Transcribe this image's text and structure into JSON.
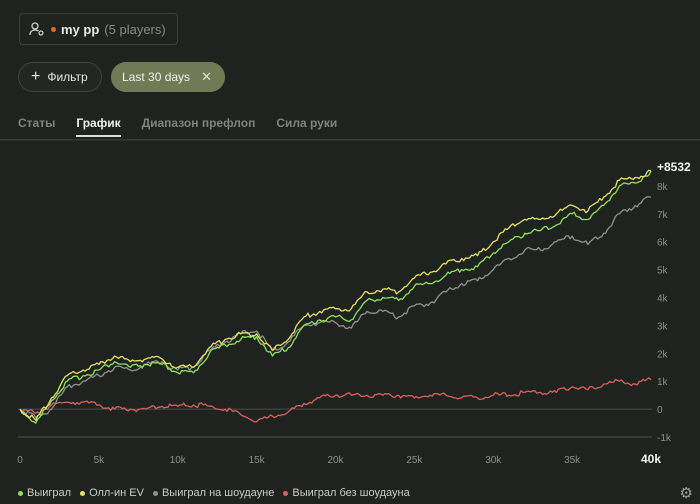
{
  "player": {
    "name": "my pp",
    "count": "(5 players)"
  },
  "filters": {
    "add_label": "Фильтр",
    "active_chip": "Last 30 days"
  },
  "tabs": [
    {
      "label": "Статы",
      "active": false
    },
    {
      "label": "График",
      "active": true
    },
    {
      "label": "Диапазон префлоп",
      "active": false
    },
    {
      "label": "Сила руки",
      "active": false
    }
  ],
  "colors": {
    "won": "#8ee05a",
    "allin_ev": "#e6e062",
    "showdown": "#8f928e",
    "non_showdown": "#d8605c",
    "accent_chip": "#707a55"
  },
  "chart_data": {
    "type": "line",
    "x_ticks": [
      "0",
      "5k",
      "10k",
      "15k",
      "20k",
      "25k",
      "30k",
      "35k",
      "40k"
    ],
    "y_ticks": [
      "-1k",
      "0",
      "1k",
      "2k",
      "3k",
      "4k",
      "5k",
      "6k",
      "7k",
      "8k"
    ],
    "xlim": [
      0,
      40000
    ],
    "ylim": [
      -1000,
      9000
    ],
    "end_label": "+8532",
    "grid": false,
    "series": [
      {
        "name": "Выиграл",
        "key": "won",
        "x": [
          0,
          1000,
          2000,
          3000,
          4000,
          5000,
          6000,
          7000,
          8000,
          9000,
          10000,
          11000,
          12000,
          13000,
          14000,
          15000,
          16000,
          17000,
          18000,
          19000,
          20000,
          21000,
          22000,
          23000,
          24000,
          25000,
          26000,
          27000,
          28000,
          29000,
          30000,
          31000,
          32000,
          33000,
          34000,
          35000,
          36000,
          37000,
          38000,
          39000,
          40000
        ],
        "y": [
          0,
          -500,
          300,
          1000,
          1200,
          1400,
          1700,
          1500,
          1600,
          1600,
          1300,
          1300,
          2000,
          2300,
          2500,
          2600,
          1900,
          2200,
          3000,
          3200,
          3300,
          3200,
          3900,
          4000,
          3900,
          4400,
          4500,
          4800,
          5000,
          5100,
          5600,
          6000,
          6300,
          6400,
          6600,
          7000,
          6800,
          7300,
          8000,
          8100,
          8532
        ]
      },
      {
        "name": "Олл-ин EV",
        "key": "allin_ev",
        "x": [
          0,
          1000,
          2000,
          3000,
          4000,
          5000,
          6000,
          7000,
          8000,
          9000,
          10000,
          11000,
          12000,
          13000,
          14000,
          15000,
          16000,
          17000,
          18000,
          19000,
          20000,
          21000,
          22000,
          23000,
          24000,
          25000,
          26000,
          27000,
          28000,
          29000,
          30000,
          31000,
          32000,
          33000,
          34000,
          35000,
          36000,
          37000,
          38000,
          39000,
          40000
        ],
        "y": [
          0,
          -400,
          400,
          1200,
          1400,
          1600,
          1900,
          1700,
          1800,
          1800,
          1500,
          1500,
          2200,
          2500,
          2700,
          2700,
          2100,
          2500,
          3300,
          3500,
          3600,
          3600,
          4200,
          4300,
          4200,
          4700,
          4900,
          5200,
          5400,
          5500,
          6000,
          6500,
          6800,
          6800,
          7000,
          7300,
          7100,
          7600,
          8200,
          8300,
          8532
        ]
      },
      {
        "name": "Выиграл на шоудауне",
        "key": "showdown",
        "x": [
          0,
          1000,
          2000,
          3000,
          4000,
          5000,
          6000,
          7000,
          8000,
          9000,
          10000,
          11000,
          12000,
          13000,
          14000,
          15000,
          16000,
          17000,
          18000,
          19000,
          20000,
          21000,
          22000,
          23000,
          24000,
          25000,
          26000,
          27000,
          28000,
          29000,
          30000,
          31000,
          32000,
          33000,
          34000,
          35000,
          36000,
          37000,
          38000,
          39000,
          40000
        ],
        "y": [
          0,
          -300,
          0,
          800,
          1000,
          1200,
          1500,
          1400,
          1600,
          1700,
          1400,
          1500,
          2100,
          2400,
          2700,
          2800,
          2100,
          2400,
          3000,
          3100,
          3100,
          2900,
          3500,
          3500,
          3300,
          3700,
          3800,
          4200,
          4500,
          4600,
          5000,
          5400,
          5700,
          5700,
          6000,
          6200,
          5900,
          6300,
          7000,
          7300,
          7600
        ]
      },
      {
        "name": "Выиграл без шоудауна",
        "key": "non_showdown",
        "x": [
          0,
          1000,
          2000,
          3000,
          4000,
          5000,
          6000,
          7000,
          8000,
          9000,
          10000,
          11000,
          12000,
          13000,
          14000,
          15000,
          16000,
          17000,
          18000,
          19000,
          20000,
          21000,
          22000,
          23000,
          24000,
          25000,
          26000,
          27000,
          28000,
          29000,
          30000,
          31000,
          32000,
          33000,
          34000,
          35000,
          36000,
          37000,
          38000,
          39000,
          40000
        ],
        "y": [
          0,
          -150,
          150,
          250,
          250,
          150,
          0,
          0,
          0,
          100,
          100,
          150,
          100,
          0,
          -200,
          -450,
          -250,
          -100,
          200,
          400,
          500,
          500,
          500,
          500,
          500,
          400,
          500,
          500,
          400,
          400,
          500,
          500,
          600,
          600,
          600,
          800,
          700,
          900,
          1000,
          900,
          1050
        ]
      }
    ]
  }
}
